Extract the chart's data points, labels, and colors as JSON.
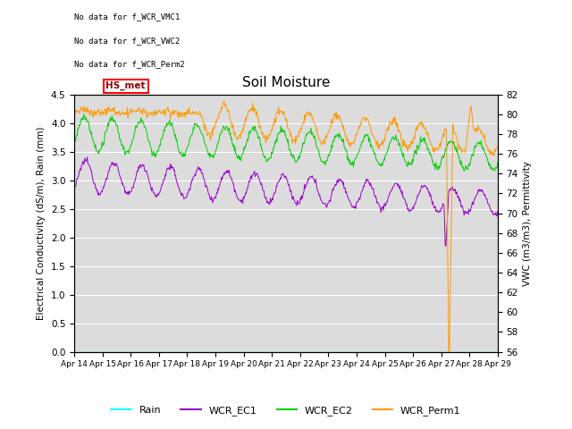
{
  "title": "Soil Moisture",
  "ylabel_left": "Electrical Conductivity (dS/m), Rain (mm)",
  "ylabel_right": "VWC (m3/m3), Permittivity",
  "ylim_left": [
    0.0,
    4.5
  ],
  "ylim_right": [
    56,
    82
  ],
  "yticks_left": [
    0.0,
    0.5,
    1.0,
    1.5,
    2.0,
    2.5,
    3.0,
    3.5,
    4.0,
    4.5
  ],
  "yticks_right": [
    56,
    58,
    60,
    62,
    64,
    66,
    68,
    70,
    72,
    74,
    76,
    78,
    80,
    82
  ],
  "no_data_texts": [
    "No data for f_WCR_VMC1",
    "No data for f_WCR_VWC2",
    "No data for f_WCR_Perm2"
  ],
  "hs_met_label": "HS_met",
  "colors": {
    "Rain": "#00ffff",
    "WCR_EC1": "#9900cc",
    "WCR_EC2": "#00cc00",
    "WCR_Perm1": "#ff9900"
  },
  "plot_bg_color": "#dcdcdc",
  "x_labels": [
    "Apr 14",
    "Apr 15",
    "Apr 16",
    "Apr 17",
    "Apr 18",
    "Apr 19",
    "Apr 20",
    "Apr 21",
    "Apr 22",
    "Apr 23",
    "Apr 24",
    "Apr 25",
    "Apr 26",
    "Apr 27",
    "Apr 28",
    "Apr 29"
  ],
  "figsize": [
    6.4,
    4.8
  ],
  "dpi": 100
}
